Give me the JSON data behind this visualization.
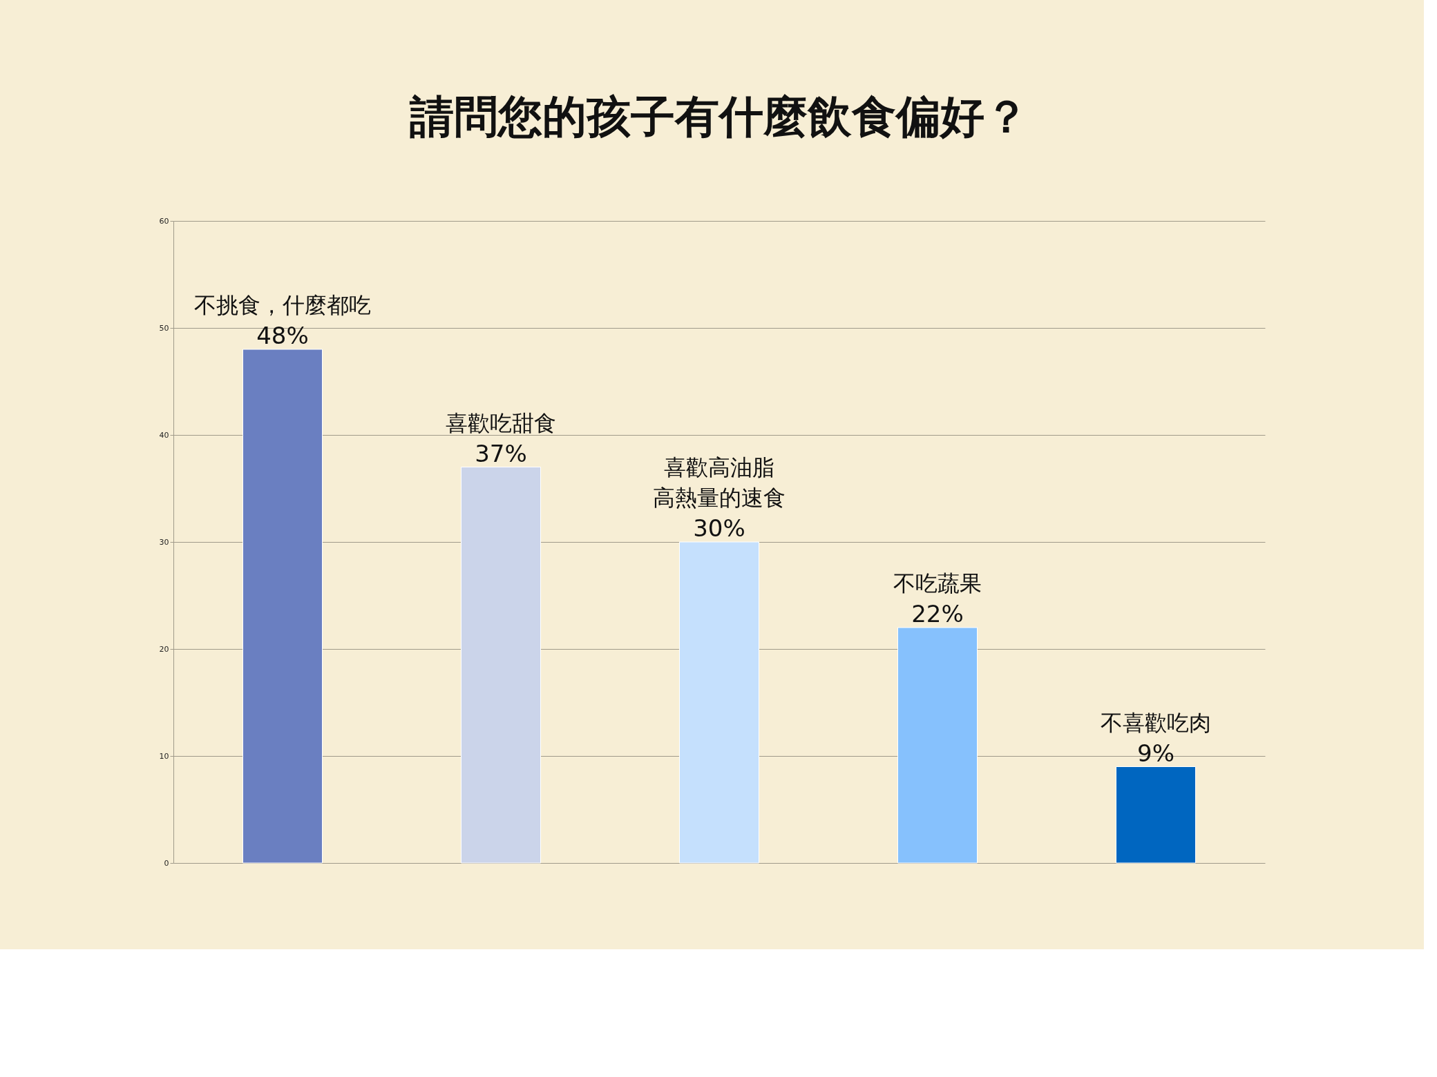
{
  "chart_data": {
    "type": "bar",
    "title": "請問您的孩子有什麼飲食偏好？",
    "categories": [
      "不挑食，什麼都吃",
      "喜歡吃甜食",
      "喜歡高油脂高熱量的速食",
      "不吃蔬果",
      "不喜歡吃肉"
    ],
    "values": [
      48,
      37,
      30,
      22,
      9
    ],
    "value_labels": [
      "48%",
      "37%",
      "30%",
      "22%",
      "9%"
    ],
    "colors": [
      "#6a7fc1",
      "#cbd4ea",
      "#c5e0fd",
      "#86c1fd",
      "#0066c0"
    ],
    "ylim": [
      0,
      60
    ],
    "yticks": [
      0,
      10,
      20,
      30,
      40,
      50,
      60
    ],
    "grid": "y",
    "tick_labels": "y"
  }
}
